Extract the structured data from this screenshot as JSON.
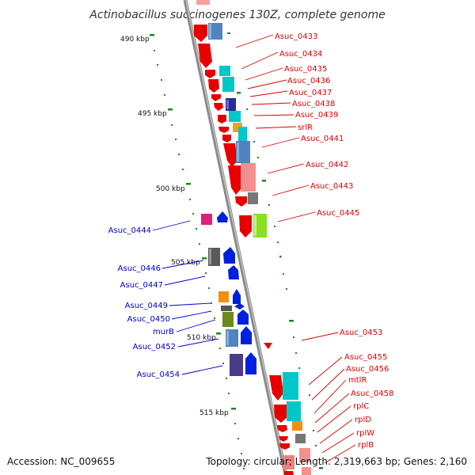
{
  "title": "Actinobacillus succinogenes 130Z, complete genome",
  "footer": {
    "accession": "Accession: NC_009655",
    "summary": "Topology: circular; Length: 2,319,663 bp; Genes: 2,160"
  },
  "colors": {
    "forward_label": "#e00000",
    "reverse_label": "#0000cc",
    "backbone": "#8a8a8a",
    "ruler_tick": "#1a8a1a"
  },
  "ruler": {
    "labels": [
      {
        "text": "490 kbp",
        "pos_kbp": 490
      },
      {
        "text": "495 kbp",
        "pos_kbp": 495
      },
      {
        "text": "500 kbp",
        "pos_kbp": 500
      },
      {
        "text": "505 kbp",
        "pos_kbp": 505
      },
      {
        "text": "510 kbp",
        "pos_kbp": 510
      },
      {
        "text": "515 kbp",
        "pos_kbp": 515
      }
    ]
  },
  "forward_genes": [
    {
      "label": "Asuc_0433"
    },
    {
      "label": "Asuc_0434"
    },
    {
      "label": "Asuc_0435"
    },
    {
      "label": "Asuc_0436"
    },
    {
      "label": "Asuc_0437"
    },
    {
      "label": "Asuc_0438"
    },
    {
      "label": "Asuc_0439"
    },
    {
      "label": "srlR"
    },
    {
      "label": "Asuc_0441"
    },
    {
      "label": "Asuc_0442"
    },
    {
      "label": "Asuc_0443"
    },
    {
      "label": "Asuc_0445"
    },
    {
      "label": "Asuc_0453"
    },
    {
      "label": "Asuc_0455"
    },
    {
      "label": "Asuc_0456"
    },
    {
      "label": "mtlR"
    },
    {
      "label": "Asuc_0458"
    },
    {
      "label": "rplC"
    },
    {
      "label": "rplD"
    },
    {
      "label": "rplW"
    },
    {
      "label": "rplB"
    }
  ],
  "reverse_genes": [
    {
      "label": "Asuc_0444"
    },
    {
      "label": "Asuc_0446"
    },
    {
      "label": "Asuc_0447"
    },
    {
      "label": "Asuc_0449"
    },
    {
      "label": "Asuc_0450"
    },
    {
      "label": "murB"
    },
    {
      "label": "Asuc_0452"
    },
    {
      "label": "Asuc_0454"
    }
  ]
}
